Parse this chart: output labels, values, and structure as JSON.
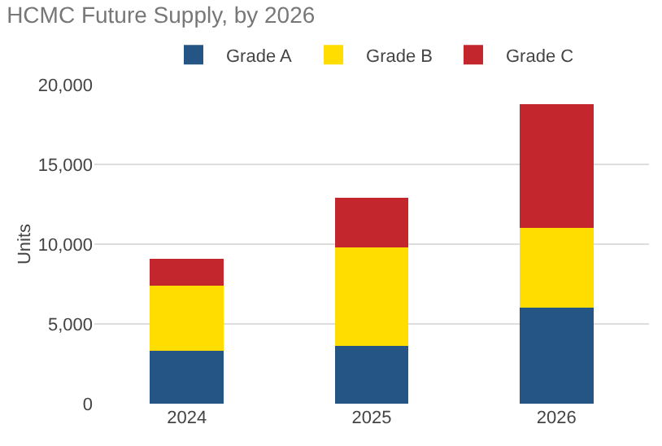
{
  "chart_data": {
    "type": "bar",
    "title": "HCMC Future Supply, by 2026",
    "ylabel": "Units",
    "categories": [
      "2024",
      "2025",
      "2026"
    ],
    "series": [
      {
        "name": "Grade A",
        "color": "#245584",
        "values": [
          3300,
          3600,
          6000
        ]
      },
      {
        "name": "Grade B",
        "color": "#ffdd00",
        "values": [
          4100,
          6200,
          5000
        ]
      },
      {
        "name": "Grade C",
        "color": "#c4262e",
        "values": [
          1700,
          3100,
          7800
        ]
      }
    ],
    "stacked": true,
    "ylim": [
      0,
      20000
    ],
    "yticks": [
      {
        "value": 0,
        "label": "0"
      },
      {
        "value": 5000,
        "label": "5,000"
      },
      {
        "value": 10000,
        "label": "10,000"
      },
      {
        "value": 15000,
        "label": "15,000"
      },
      {
        "value": 20000,
        "label": "20,000"
      }
    ],
    "grid": "y",
    "legend": "top"
  }
}
